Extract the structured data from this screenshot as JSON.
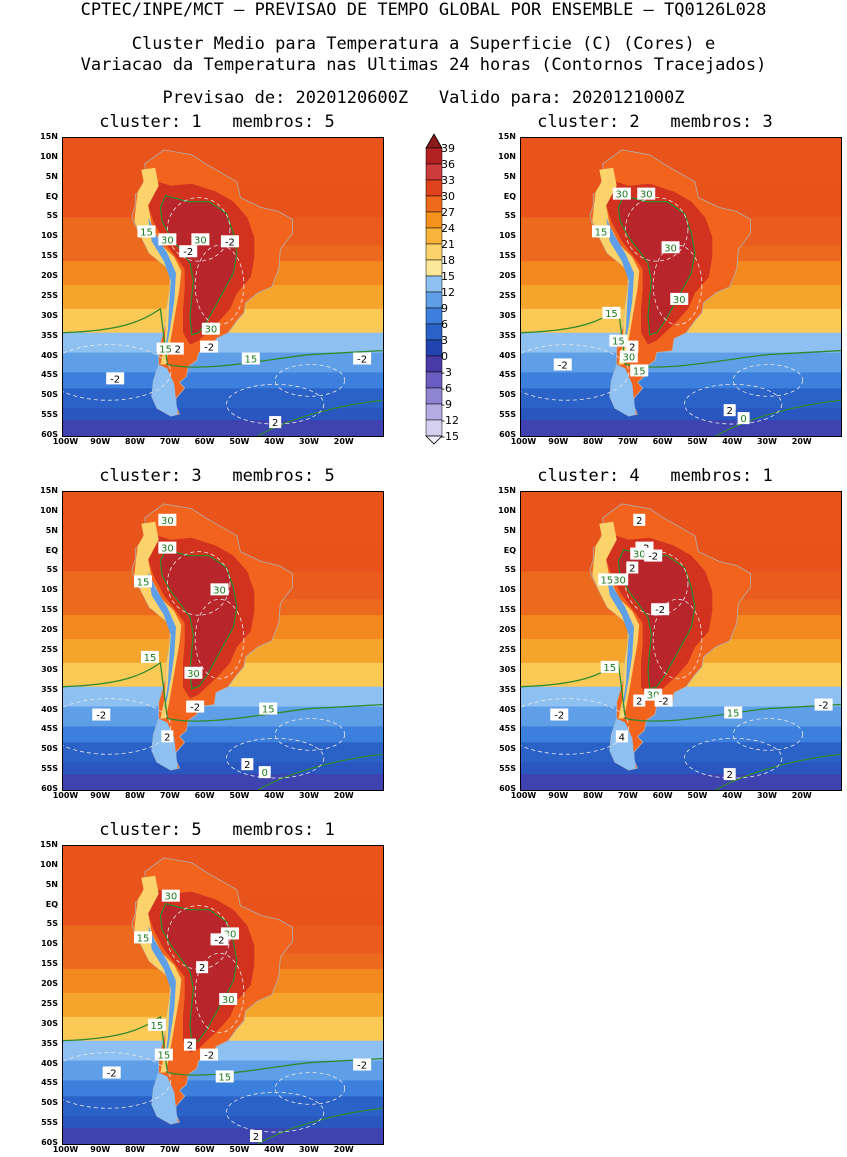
{
  "header": {
    "line1": "CPTEC/INPE/MCT – PREVISAO DE TEMPO GLOBAL POR ENSEMBLE – TQ0126L028",
    "line2": "Cluster Medio para Temperatura a Superficie (C) (Cores) e",
    "line3": "Variacao da Temperatura nas Ultimas 24 horas (Contornos Tracejados)",
    "line4": "Previsao de: 2020120600Z   Valido para: 2020121000Z"
  },
  "axes": {
    "lat_labels": [
      "15N",
      "10N",
      "5N",
      "EQ",
      "5S",
      "10S",
      "15S",
      "20S",
      "25S",
      "30S",
      "35S",
      "40S",
      "45S",
      "50S",
      "55S",
      "60S"
    ],
    "lon_labels": [
      "100W",
      "90W",
      "80W",
      "70W",
      "60W",
      "50W",
      "40W",
      "30W",
      "20W"
    ]
  },
  "colorbar": {
    "levels": [
      "39",
      "36",
      "33",
      "30",
      "27",
      "24",
      "21",
      "18",
      "15",
      "12",
      "9",
      "6",
      "3",
      "0",
      "-3",
      "-6",
      "-9",
      "-12",
      "-15"
    ],
    "colors": [
      "#8b1a1a",
      "#b22222",
      "#cd3b3b",
      "#e0421c",
      "#f06a1e",
      "#f5921e",
      "#f8b33a",
      "#fbd36a",
      "#fde89a",
      "#8ec0f2",
      "#5f9fe8",
      "#3c7fdc",
      "#2a62c8",
      "#2244b0",
      "#4a3aa8",
      "#6a5cc0",
      "#8f84d2",
      "#b4abe2",
      "#d6d0f0",
      "#f0eefa"
    ]
  },
  "panels": [
    {
      "title": "cluster: 1   membros: 5",
      "labels": [
        {
          "t": "15",
          "c": "g",
          "lon": -77,
          "lat": -8.5
        },
        {
          "t": "30",
          "c": "g",
          "lon": -71,
          "lat": -10.5
        },
        {
          "t": "30",
          "c": "g",
          "lon": -61.5,
          "lat": -10.5
        },
        {
          "t": "-2",
          "c": "w",
          "lon": -53,
          "lat": -11
        },
        {
          "t": "-2",
          "c": "w",
          "lon": -65,
          "lat": -13.5
        },
        {
          "t": "30",
          "c": "g",
          "lon": -58.5,
          "lat": -33
        },
        {
          "t": "-2",
          "c": "w",
          "lon": -59,
          "lat": -37.5
        },
        {
          "t": "15",
          "c": "g",
          "lon": -71.5,
          "lat": -38
        },
        {
          "t": "2",
          "c": "w",
          "lon": -68,
          "lat": -38
        },
        {
          "t": "15",
          "c": "g",
          "lon": -47,
          "lat": -40.5
        },
        {
          "t": "-2",
          "c": "w",
          "lon": -15,
          "lat": -40.5
        },
        {
          "t": "-2",
          "c": "w",
          "lon": -86,
          "lat": -45.5
        },
        {
          "t": "2",
          "c": "w",
          "lon": -40,
          "lat": -56.5
        }
      ]
    },
    {
      "title": "cluster: 2   membros: 3",
      "labels": [
        {
          "t": "30",
          "c": "g",
          "lon": -72,
          "lat": 1
        },
        {
          "t": "30",
          "c": "g",
          "lon": -65,
          "lat": 1
        },
        {
          "t": "15",
          "c": "g",
          "lon": -78,
          "lat": -8.5
        },
        {
          "t": "30",
          "c": "g",
          "lon": -58,
          "lat": -12.5
        },
        {
          "t": "30",
          "c": "g",
          "lon": -55.5,
          "lat": -25.5
        },
        {
          "t": "15",
          "c": "g",
          "lon": -75,
          "lat": -29
        },
        {
          "t": "15",
          "c": "g",
          "lon": -73,
          "lat": -36
        },
        {
          "t": "2",
          "c": "w",
          "lon": -69,
          "lat": -37.5
        },
        {
          "t": "30",
          "c": "g",
          "lon": -70,
          "lat": -40
        },
        {
          "t": "-2",
          "c": "w",
          "lon": -89,
          "lat": -42
        },
        {
          "t": "15",
          "c": "g",
          "lon": -67,
          "lat": -43.5
        },
        {
          "t": "2",
          "c": "w",
          "lon": -41,
          "lat": -53.5
        },
        {
          "t": "0",
          "c": "g",
          "lon": -37,
          "lat": -55.5
        }
      ]
    },
    {
      "title": "cluster: 3   membros: 5",
      "labels": [
        {
          "t": "30",
          "c": "g",
          "lon": -71,
          "lat": 8
        },
        {
          "t": "30",
          "c": "g",
          "lon": -71,
          "lat": 1
        },
        {
          "t": "15",
          "c": "g",
          "lon": -78,
          "lat": -7.5
        },
        {
          "t": "30",
          "c": "g",
          "lon": -56,
          "lat": -9.5
        },
        {
          "t": "15",
          "c": "g",
          "lon": -76,
          "lat": -26.5
        },
        {
          "t": "30",
          "c": "g",
          "lon": -63.5,
          "lat": -30.5
        },
        {
          "t": "-2",
          "c": "w",
          "lon": -63,
          "lat": -39
        },
        {
          "t": "15",
          "c": "g",
          "lon": -42,
          "lat": -39.5
        },
        {
          "t": "-2",
          "c": "w",
          "lon": -90,
          "lat": -41
        },
        {
          "t": "2",
          "c": "w",
          "lon": -71,
          "lat": -46.5
        },
        {
          "t": "2",
          "c": "w",
          "lon": -48,
          "lat": -53.5
        },
        {
          "t": "0",
          "c": "g",
          "lon": -43,
          "lat": -55.5
        }
      ]
    },
    {
      "title": "cluster: 4   membros: 1",
      "labels": [
        {
          "t": "2",
          "c": "w",
          "lon": -67,
          "lat": 8
        },
        {
          "t": "-2",
          "c": "w",
          "lon": -65.5,
          "lat": 1
        },
        {
          "t": "30",
          "c": "g",
          "lon": -67,
          "lat": -0.5
        },
        {
          "t": "-2",
          "c": "w",
          "lon": -63,
          "lat": -1
        },
        {
          "t": "2",
          "c": "w",
          "lon": -69,
          "lat": -4
        },
        {
          "t": "1530",
          "c": "g",
          "lon": -74.5,
          "lat": -7
        },
        {
          "t": "-2",
          "c": "w",
          "lon": -61,
          "lat": -14.5
        },
        {
          "t": "15",
          "c": "g",
          "lon": -75.5,
          "lat": -29
        },
        {
          "t": "2",
          "c": "w",
          "lon": -67,
          "lat": -37.5
        },
        {
          "t": "30",
          "c": "g",
          "lon": -63,
          "lat": -36
        },
        {
          "t": "-2",
          "c": "w",
          "lon": -60,
          "lat": -37.5
        },
        {
          "t": "15",
          "c": "g",
          "lon": -40,
          "lat": -40.5
        },
        {
          "t": "-2",
          "c": "w",
          "lon": -90,
          "lat": -41
        },
        {
          "t": "-2",
          "c": "w",
          "lon": -14,
          "lat": -38.5
        },
        {
          "t": "4",
          "c": "w",
          "lon": -72,
          "lat": -46.5
        },
        {
          "t": "2",
          "c": "w",
          "lon": -41,
          "lat": -56
        }
      ]
    },
    {
      "title": "cluster: 5   membros: 1",
      "labels": [
        {
          "t": "30",
          "c": "g",
          "lon": -70,
          "lat": 2.5
        },
        {
          "t": "15",
          "c": "g",
          "lon": -78,
          "lat": -8
        },
        {
          "t": "30",
          "c": "g",
          "lon": -53,
          "lat": -7
        },
        {
          "t": "-2",
          "c": "w",
          "lon": -56,
          "lat": -8.5
        },
        {
          "t": "2",
          "c": "w",
          "lon": -61,
          "lat": -15.5
        },
        {
          "t": "30",
          "c": "g",
          "lon": -53.5,
          "lat": -23.5
        },
        {
          "t": "15",
          "c": "g",
          "lon": -74,
          "lat": -30
        },
        {
          "t": "2",
          "c": "w",
          "lon": -64.5,
          "lat": -35
        },
        {
          "t": "15",
          "c": "g",
          "lon": -72,
          "lat": -37.5
        },
        {
          "t": "-2",
          "c": "w",
          "lon": -59,
          "lat": -37.5
        },
        {
          "t": "-2",
          "c": "w",
          "lon": -15,
          "lat": -40
        },
        {
          "t": "-2",
          "c": "w",
          "lon": -87,
          "lat": -42
        },
        {
          "t": "15",
          "c": "g",
          "lon": -54.5,
          "lat": -43
        },
        {
          "t": "2",
          "c": "w",
          "lon": -45.5,
          "lat": -58
        }
      ]
    }
  ]
}
